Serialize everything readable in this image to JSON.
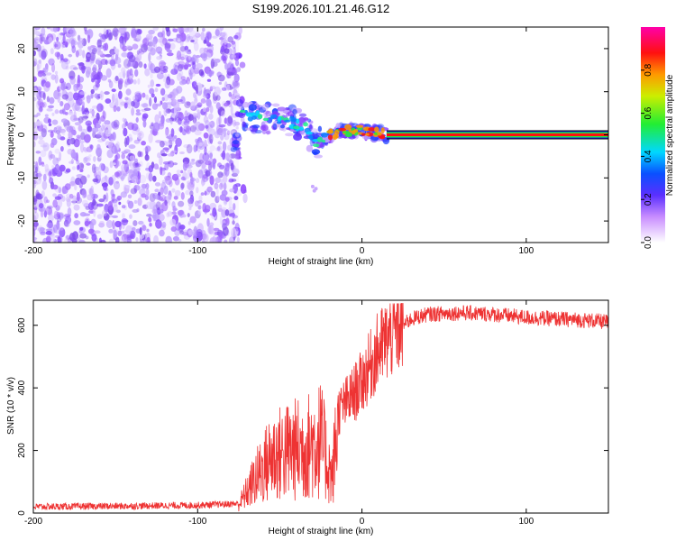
{
  "title": "S199.2026.101.21.46.G12",
  "chart_data": [
    {
      "type": "heatmap",
      "xlabel": "Height of straight line (km)",
      "ylabel": "Frequency (Hz)",
      "xlim": [
        -200,
        150
      ],
      "ylim": [
        -25,
        25
      ],
      "xticks": [
        "-200",
        "-100",
        "0",
        "100"
      ],
      "xtick_values": [
        -200,
        -100,
        0,
        100
      ],
      "yticks": [
        "-20",
        "-10",
        "0",
        "10",
        "20"
      ],
      "ytick_values": [
        -20,
        -10,
        0,
        10,
        20
      ],
      "colorbar": {
        "label": "Normalized spectral amplitude",
        "range": [
          0,
          1
        ],
        "ticks": [
          "0.0",
          "0.2",
          "0.4",
          "0.6",
          "0.8"
        ],
        "tick_values": [
          0.0,
          0.2,
          0.4,
          0.6,
          0.8
        ]
      },
      "regions": [
        {
          "name": "noise",
          "x_range": [
            -200,
            -75
          ],
          "freq_range": [
            -25,
            25
          ],
          "amplitude": 0.15
        },
        {
          "name": "transition",
          "x_range": [
            -75,
            15
          ],
          "freq_track": [
            [
              -75,
              5
            ],
            [
              -60,
              4
            ],
            [
              -45,
              3
            ],
            [
              -35,
              2
            ],
            [
              -28,
              -2
            ],
            [
              -20,
              0
            ],
            [
              -10,
              1
            ],
            [
              0,
              1
            ],
            [
              15,
              0
            ]
          ],
          "amplitude": 0.5
        },
        {
          "name": "carrier",
          "x_range": [
            15,
            150
          ],
          "freq": 0,
          "amplitude": 0.95
        }
      ]
    },
    {
      "type": "line",
      "xlabel": "Height of straight line (km)",
      "ylabel": "SNR (10 * v/v)",
      "xlim": [
        -200,
        150
      ],
      "ylim": [
        0,
        680
      ],
      "xticks": [
        "-200",
        "-100",
        "0",
        "100"
      ],
      "xtick_values": [
        -200,
        -100,
        0,
        100
      ],
      "yticks": [
        "0",
        "200",
        "400",
        "600"
      ],
      "ytick_values": [
        0,
        200,
        400,
        600
      ],
      "color": "#ee3333",
      "series": [
        {
          "name": "SNR",
          "envelope_x": [
            -200,
            -150,
            -100,
            -75,
            -65,
            -55,
            -45,
            -35,
            -25,
            -18,
            -15,
            -10,
            -5,
            0,
            5,
            10,
            20,
            30,
            40,
            60,
            80,
            100,
            120,
            140,
            150
          ],
          "envelope_y": [
            20,
            22,
            25,
            30,
            120,
            200,
            220,
            230,
            260,
            120,
            320,
            350,
            380,
            420,
            470,
            520,
            580,
            620,
            635,
            640,
            635,
            625,
            620,
            615,
            610
          ]
        }
      ]
    }
  ]
}
